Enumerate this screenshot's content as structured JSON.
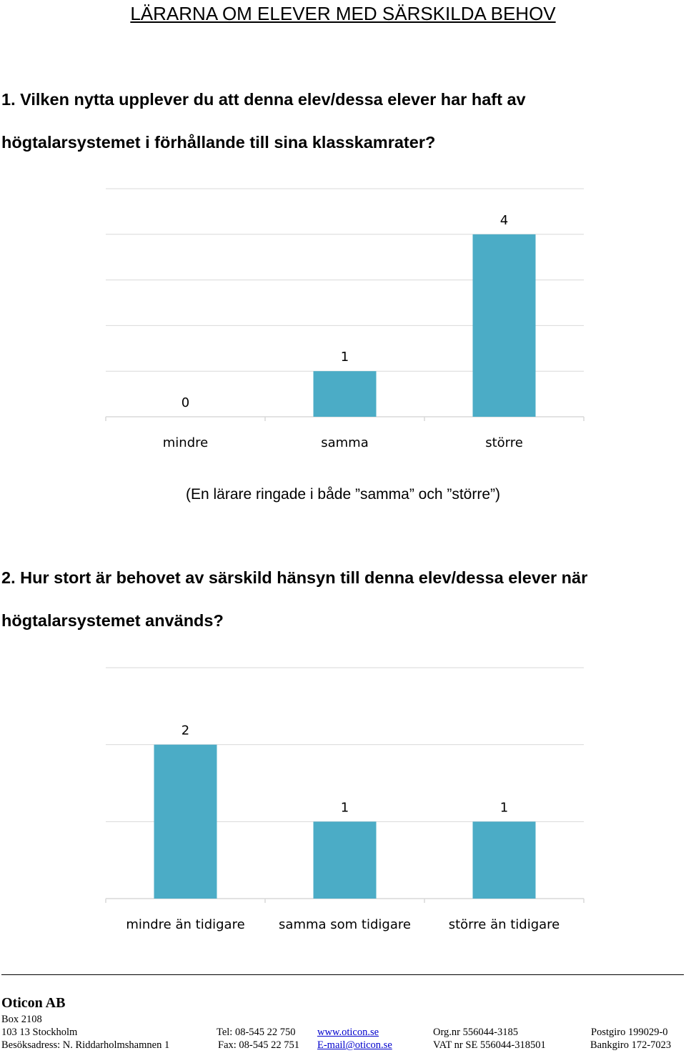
{
  "document": {
    "title": "LÄRARNA OM ELEVER MED SÄRSKILDA BEHOV",
    "q1_line1": "1. Vilken nytta upplever du att denna elev/dessa elever har haft av",
    "q1_line2": "högtalarsystemet i förhållande till sina klasskamrater?",
    "note": "(En lärare ringade i både ”samma” och ”större”)",
    "q2_line1": "2. Hur stort är behovet av särskild hänsyn till denna elev/dessa elever när",
    "q2_line2": "högtalarsystemet används?"
  },
  "chart_data": [
    {
      "type": "bar",
      "categories": [
        "mindre",
        "samma",
        "större"
      ],
      "values": [
        0,
        1,
        4
      ],
      "ylim": [
        0,
        5
      ],
      "grid": true,
      "bar_color": "#4BACC6"
    },
    {
      "type": "bar",
      "categories": [
        "mindre än tidigare",
        "samma som tidigare",
        "större än tidigare"
      ],
      "values": [
        2,
        1,
        1
      ],
      "ylim": [
        0,
        3
      ],
      "grid": true,
      "bar_color": "#4BACC6"
    }
  ],
  "footer": {
    "company": "Oticon AB",
    "box": "Box 2108",
    "city": "103 13 Stockholm",
    "tel": "Tel:  08-545 22 750",
    "web": "www.oticon.se",
    "org": "Org.nr 556044-3185",
    "postgiro": "Postgiro  199029-0",
    "visit": "Besöksadress: N. Riddarholmshamnen 1",
    "fax": "Fax: 08-545 22 751",
    "email": "E-mail@oticon.se",
    "vat": "VAT nr SE 556044-318501",
    "bankgiro": "Bankgiro 172-7023"
  }
}
